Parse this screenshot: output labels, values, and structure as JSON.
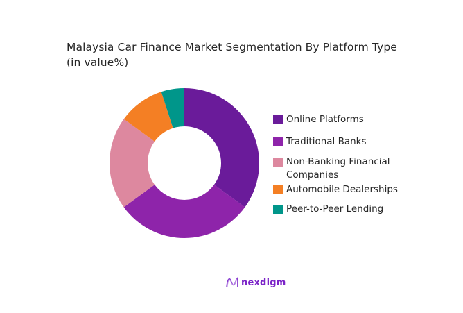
{
  "chart_data": {
    "type": "pie",
    "variant": "donut",
    "title": "Malaysia Car Finance Market Segmentation By Platform Type",
    "subtitle": "(in value%)",
    "categories": [
      "Online Platforms",
      "Traditional Banks",
      "Non-Banking Financial Companies",
      "Automobile Dealerships",
      "Peer-to-Peer Lending"
    ],
    "values": [
      35,
      30,
      20,
      10,
      5
    ],
    "colors": [
      "#6a1b9a",
      "#8e24aa",
      "#dd889f",
      "#f47f24",
      "#00968a"
    ],
    "legend_position": "right",
    "start_angle": "top, clockwise",
    "data_labels": false
  },
  "title": {
    "line1": "Malaysia Car Finance Market Segmentation By Platform Type",
    "line2": "(in value%)"
  },
  "legend": {
    "items": [
      {
        "label": "Online Platforms",
        "color": "#6a1b9a"
      },
      {
        "label": "Traditional Banks",
        "color": "#8e24aa"
      },
      {
        "label": "Non-Banking Financial Companies",
        "color": "#dd889f"
      },
      {
        "label": "Automobile Dealerships",
        "color": "#f47f24"
      },
      {
        "label": "Peer-to-Peer Lending",
        "color": "#00968a"
      }
    ]
  },
  "branding": {
    "logo_text": "nexdigm",
    "logo_icon": "nexdigm-wave-icon"
  }
}
